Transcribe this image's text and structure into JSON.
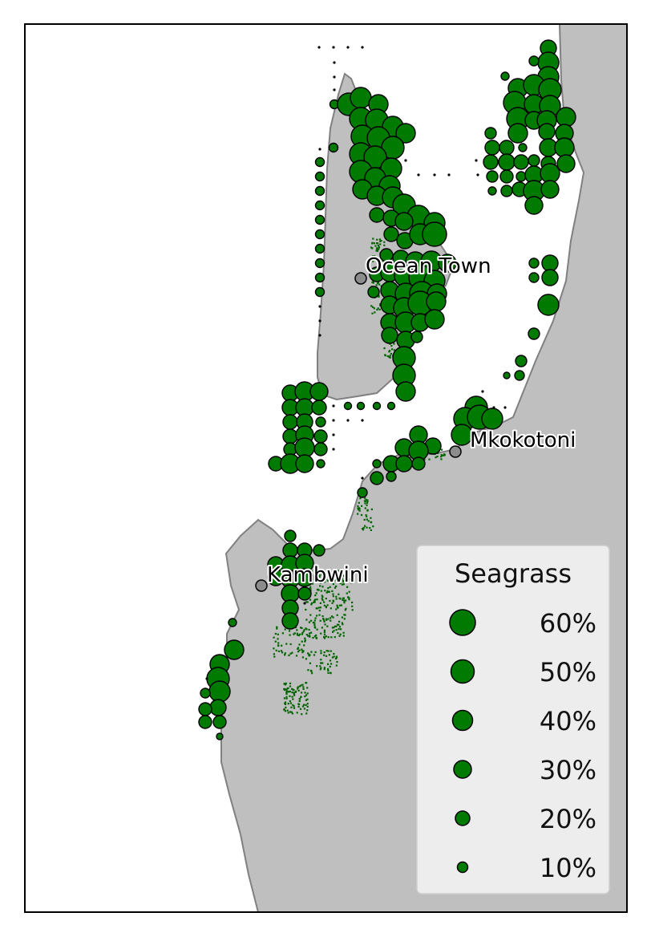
{
  "legend": {
    "title": "Seagrass",
    "entries": [
      {
        "label": "60%",
        "value": 60
      },
      {
        "label": "50%",
        "value": 50
      },
      {
        "label": "40%",
        "value": 40
      },
      {
        "label": "30%",
        "value": 30
      },
      {
        "label": "20%",
        "value": 20
      },
      {
        "label": "10%",
        "value": 10
      }
    ]
  },
  "places": [
    {
      "name": "Ocean Town",
      "label": "Ocean Town"
    },
    {
      "name": "Mkokotoni",
      "label": "Mkokotoni"
    },
    {
      "name": "Kambwini",
      "label": "Kambwini"
    }
  ],
  "colors": {
    "land": "#bfbfbf",
    "coast": "#808080",
    "marker": "#007a00",
    "marker_edge": "#000000",
    "town": "#8c8c8c",
    "legend_bg": "#f0f0f0"
  }
}
